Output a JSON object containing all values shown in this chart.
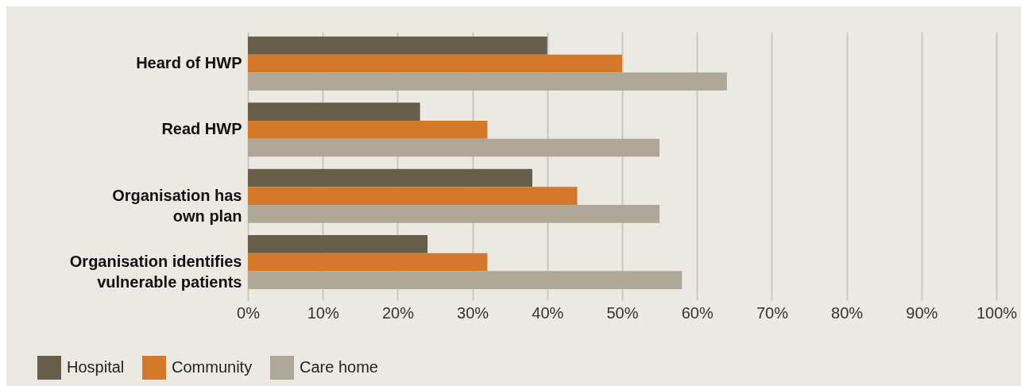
{
  "chart_data": {
    "type": "bar",
    "orientation": "horizontal",
    "categories": [
      "Heard of HWP",
      "Read HWP",
      "Organisation has own plan",
      "Organisation identifies vulnerable patients"
    ],
    "series": [
      {
        "name": "Hospital",
        "color": "#675e4a",
        "values": [
          40,
          23,
          38,
          24
        ]
      },
      {
        "name": "Community",
        "color": "#d4782a",
        "values": [
          50,
          32,
          44,
          32
        ]
      },
      {
        "name": "Care home",
        "color": "#afa898",
        "values": [
          64,
          55,
          55,
          58
        ]
      }
    ],
    "xlim": [
      0,
      100
    ],
    "xticks": [
      {
        "value": 0,
        "label": "0%"
      },
      {
        "value": 10,
        "label": "10%"
      },
      {
        "value": 20,
        "label": "20%"
      },
      {
        "value": 30,
        "label": "30%"
      },
      {
        "value": 40,
        "label": "40%"
      },
      {
        "value": 50,
        "label": "50%"
      },
      {
        "value": 60,
        "label": "60%"
      },
      {
        "value": 70,
        "label": "70%"
      },
      {
        "value": 80,
        "label": "80%"
      },
      {
        "value": 90,
        "label": "90%"
      },
      {
        "value": 100,
        "label": "100%"
      }
    ],
    "grid": "x",
    "legend": "bottom left"
  }
}
